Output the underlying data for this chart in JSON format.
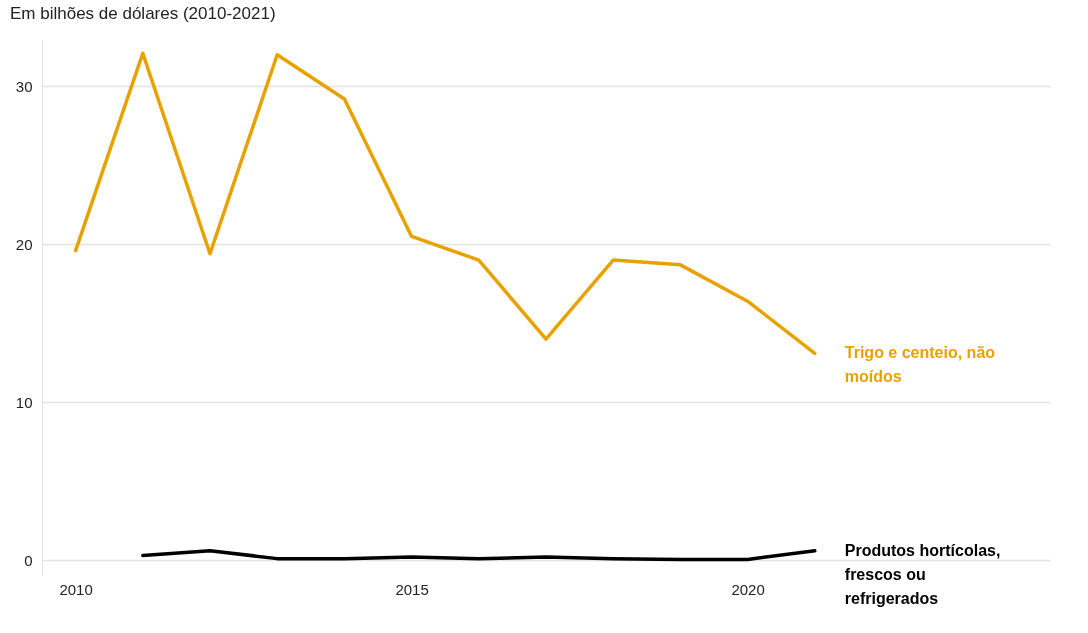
{
  "chart_data": {
    "type": "line",
    "title": "Em bilhões de dólares (2010-2021)",
    "x": [
      2010,
      2011,
      2012,
      2013,
      2014,
      2015,
      2016,
      2017,
      2018,
      2019,
      2020,
      2021
    ],
    "series": [
      {
        "name": "Trigo e centeio, não moídos",
        "color": "#e8a200",
        "values": [
          19.6,
          32.1,
          19.4,
          32.0,
          29.2,
          20.5,
          19.0,
          14.0,
          19.0,
          18.7,
          16.4,
          13.1
        ]
      },
      {
        "name": "Produtos hortícolas, frescos ou refrigerados",
        "color": "#000000",
        "values": [
          null,
          0.3,
          0.6,
          0.1,
          0.1,
          0.2,
          0.1,
          0.2,
          0.1,
          0.05,
          0.05,
          0.6
        ]
      }
    ],
    "xlim": [
      2009.5,
      2024.5
    ],
    "xticks": [
      2010,
      2015,
      2020
    ],
    "ylim": [
      -1,
      33
    ],
    "yticks": [
      0,
      10,
      20,
      30
    ],
    "grid": "y",
    "legend": false,
    "marker": "none",
    "line_style": "solid"
  }
}
